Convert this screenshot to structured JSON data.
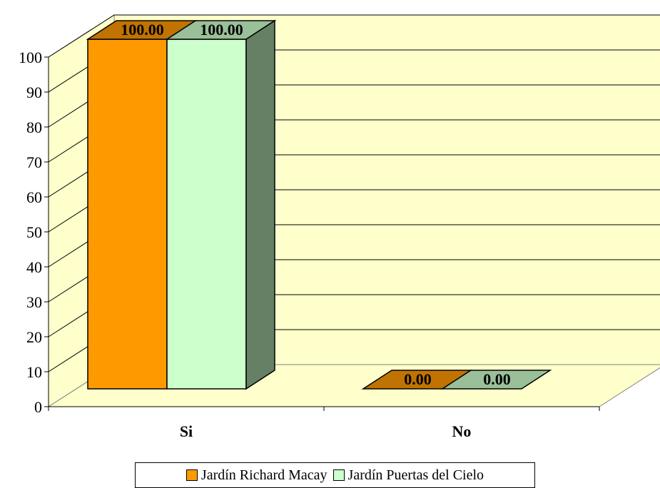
{
  "chart_data": {
    "type": "bar",
    "style": "3d-clustered",
    "categories": [
      "Si",
      "No"
    ],
    "series": [
      {
        "name": "Jardín Richard Macay",
        "values": [
          100.0,
          0.0
        ],
        "color": "#FF9900",
        "top_color": "#C07300",
        "side_color": "#8A5200"
      },
      {
        "name": "Jardín Puertas del Cielo",
        "values": [
          100.0,
          0.0
        ],
        "color": "#CCFFCC",
        "top_color": "#99C099",
        "side_color": "#668066"
      }
    ],
    "data_labels": [
      [
        "100.00",
        "0.00"
      ],
      [
        "100.00",
        "0.00"
      ]
    ],
    "y_ticks": [
      "0",
      "10",
      "20",
      "30",
      "40",
      "50",
      "60",
      "70",
      "80",
      "90",
      "100"
    ],
    "ylim": [
      0,
      100
    ],
    "grid": true,
    "legend_position": "bottom",
    "wall_color": "#FFFFCC",
    "title": "",
    "xlabel": "",
    "ylabel": ""
  }
}
